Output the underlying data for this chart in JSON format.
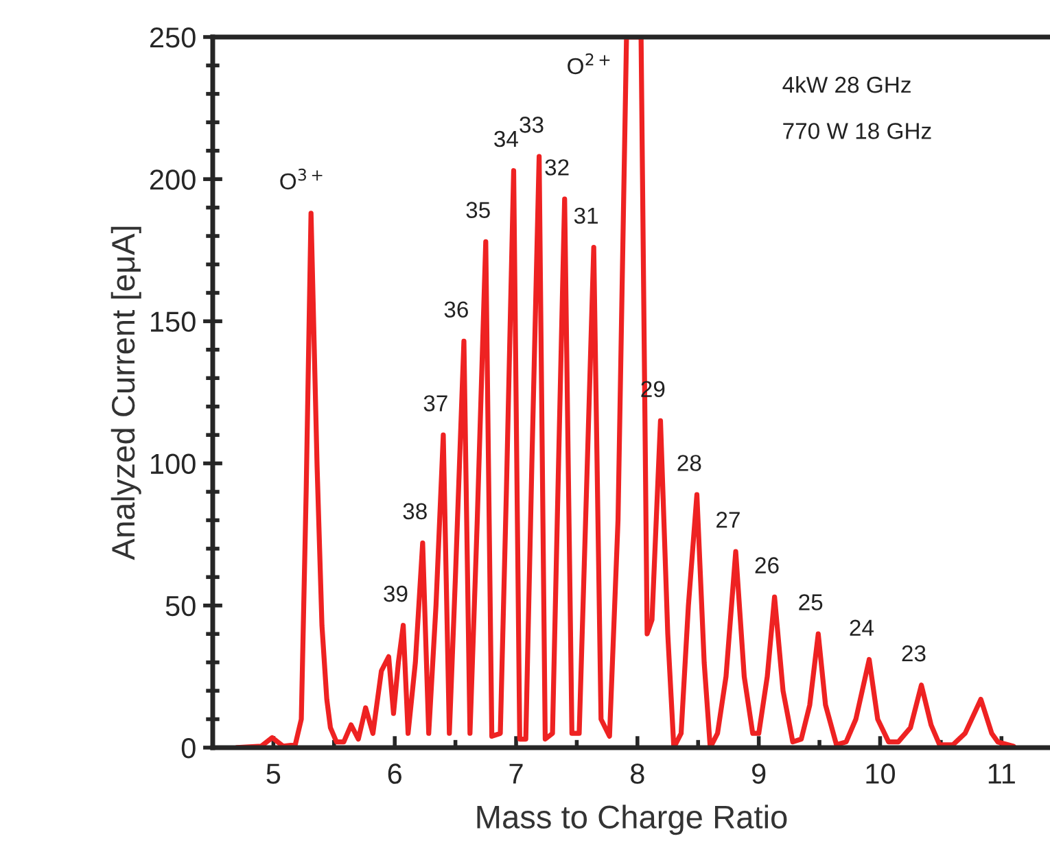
{
  "chart_data": {
    "type": "line",
    "xlabel": "Mass to Charge Ratio",
    "ylabel": "Analyzed Current [eμA]",
    "xlim": [
      4.5,
      11.4
    ],
    "xticks": [
      5,
      6,
      7,
      8,
      9,
      10,
      11
    ],
    "ylim": [
      0,
      250
    ],
    "yticks": [
      0,
      50,
      100,
      150,
      200,
      250
    ],
    "grid": false,
    "legend": false,
    "marker": "none",
    "line_style": "solid",
    "series": [
      {
        "color": "#ee2222",
        "x": [
          4.7,
          4.9,
          4.99,
          5.08,
          5.18,
          5.23,
          5.27,
          5.31,
          5.36,
          5.4,
          5.44,
          5.47,
          5.52,
          5.58,
          5.64,
          5.7,
          5.76,
          5.82,
          5.89,
          5.95,
          5.99,
          6.03,
          6.07,
          6.11,
          6.17,
          6.23,
          6.28,
          6.34,
          6.4,
          6.45,
          6.5,
          6.57,
          6.62,
          6.68,
          6.75,
          6.8,
          6.87,
          6.92,
          6.98,
          7.03,
          7.08,
          7.13,
          7.19,
          7.24,
          7.3,
          7.35,
          7.4,
          7.46,
          7.52,
          7.58,
          7.64,
          7.7,
          7.77,
          7.84,
          7.91,
          8.03,
          8.08,
          8.12,
          8.19,
          8.25,
          8.3,
          8.36,
          8.42,
          8.49,
          8.55,
          8.6,
          8.66,
          8.73,
          8.81,
          8.88,
          8.95,
          9.0,
          9.07,
          9.13,
          9.2,
          9.28,
          9.35,
          9.42,
          9.49,
          9.55,
          9.64,
          9.72,
          9.8,
          9.91,
          9.98,
          10.07,
          10.15,
          10.25,
          10.34,
          10.42,
          10.49,
          10.6,
          10.7,
          10.83,
          10.92,
          10.97,
          11.1
        ],
        "values": [
          0,
          0.5,
          3.5,
          0.5,
          1,
          10,
          90,
          188,
          99,
          43,
          17,
          7,
          2,
          2,
          8,
          3,
          14,
          5,
          27,
          32,
          12,
          30,
          43,
          5,
          30,
          72,
          5,
          50,
          110,
          5,
          60,
          143,
          5,
          80,
          178,
          4,
          5,
          90,
          203,
          3,
          3,
          100,
          208,
          3,
          5,
          100,
          193,
          5,
          5,
          90,
          176,
          10,
          4,
          80,
          250,
          250,
          40,
          45,
          115,
          40,
          0,
          5,
          50,
          89,
          30,
          0,
          5,
          25,
          69,
          25,
          5,
          5,
          25,
          53,
          20,
          2,
          3,
          15,
          40,
          15,
          1,
          2,
          10,
          31,
          10,
          2,
          2,
          7,
          22,
          8,
          1,
          1,
          5,
          17,
          5,
          2,
          0.5
        ]
      }
    ],
    "annotations": [
      {
        "text": "O$^{3+}$",
        "x": 5.31,
        "y": 188
      },
      {
        "text": "O$^{2+}$",
        "x": 7.91,
        "y": 250
      },
      {
        "text": "39",
        "x": 6.07,
        "y": 43
      },
      {
        "text": "38",
        "x": 6.23,
        "y": 72
      },
      {
        "text": "37",
        "x": 6.4,
        "y": 110
      },
      {
        "text": "36",
        "x": 6.57,
        "y": 143
      },
      {
        "text": "35",
        "x": 6.75,
        "y": 178
      },
      {
        "text": "34",
        "x": 6.98,
        "y": 203
      },
      {
        "text": "33",
        "x": 7.19,
        "y": 208
      },
      {
        "text": "32",
        "x": 7.4,
        "y": 193
      },
      {
        "text": "31",
        "x": 7.64,
        "y": 176
      },
      {
        "text": "29",
        "x": 8.19,
        "y": 115
      },
      {
        "text": "28",
        "x": 8.49,
        "y": 89
      },
      {
        "text": "27",
        "x": 8.81,
        "y": 69
      },
      {
        "text": "26",
        "x": 9.13,
        "y": 53
      },
      {
        "text": "25",
        "x": 9.49,
        "y": 40
      },
      {
        "text": "24",
        "x": 9.91,
        "y": 31
      },
      {
        "text": "23",
        "x": 10.34,
        "y": 22
      },
      "4kW 28 GHz",
      "770 W 18 GHz"
    ]
  }
}
